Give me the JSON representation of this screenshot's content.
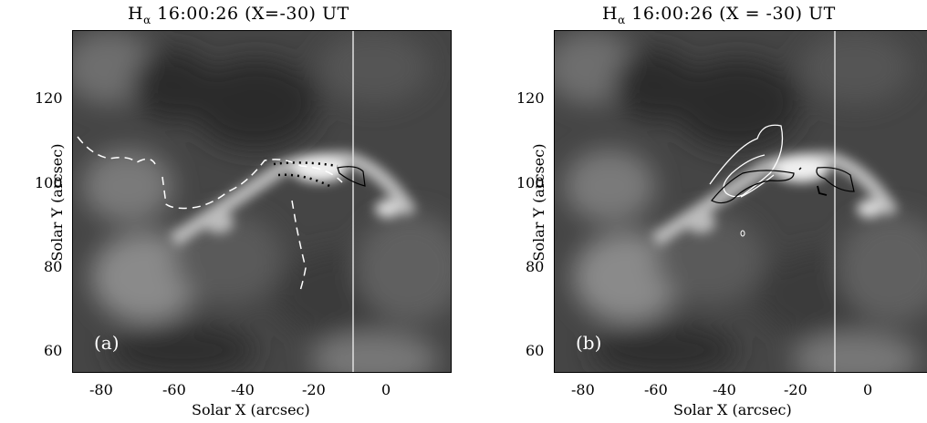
{
  "panels": [
    {
      "id": "a",
      "title_prefix": "H",
      "title_sub": "α",
      "title_rest": " 16:00:26 (X=-30) UT",
      "tag": "(a)",
      "x_label": "Solar X (arcsec)",
      "y_label": "Solar Y (arcsec)",
      "x_ticks": [
        "-80",
        "-60",
        "-40",
        "-20",
        "0"
      ],
      "y_ticks": [
        "120",
        "100",
        "80",
        "60"
      ]
    },
    {
      "id": "b",
      "title_prefix": "H",
      "title_sub": "α",
      "title_rest": " 16:00:26 (X = -30) UT",
      "tag": "(b)",
      "x_label": "Solar X (arcsec)",
      "y_label": "Solar Y (arcsec)",
      "x_ticks": [
        "-80",
        "-60",
        "-40",
        "-20",
        "0"
      ],
      "y_ticks": [
        "120",
        "100",
        "80",
        "60"
      ]
    }
  ],
  "colors": {
    "background": "#ffffff",
    "image_base": "#4a4a4a",
    "contour_white": "#ffffff",
    "contour_black": "#000000"
  }
}
